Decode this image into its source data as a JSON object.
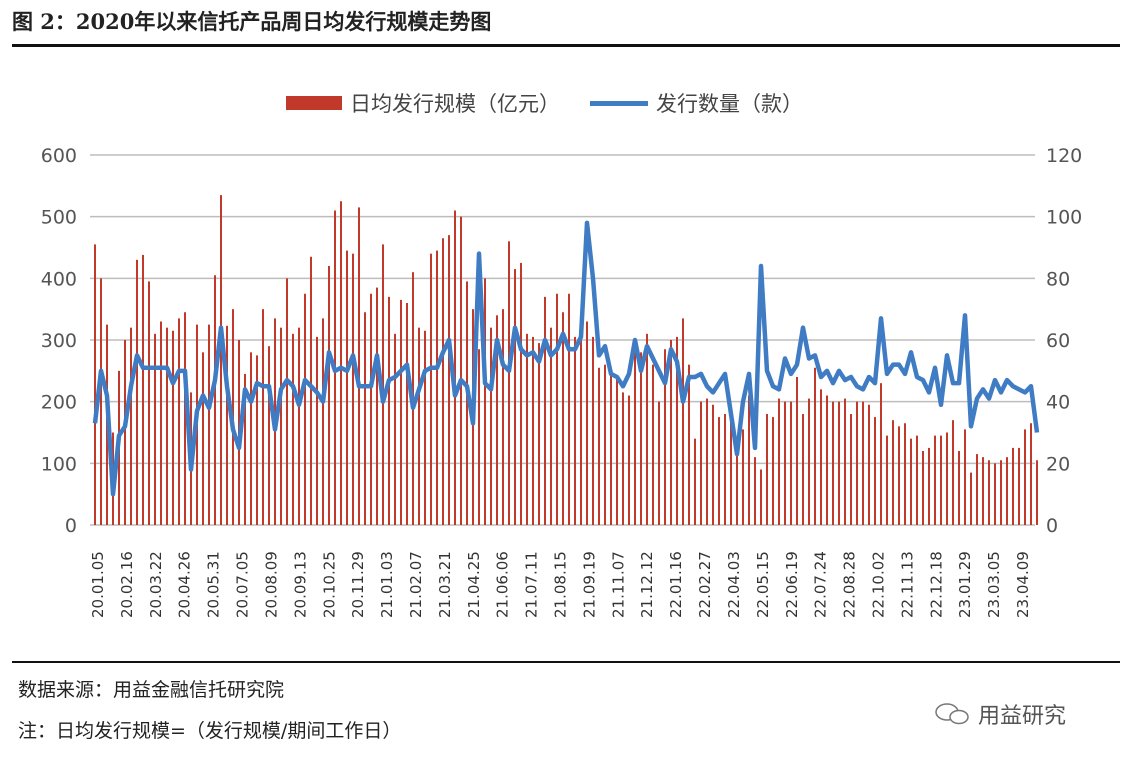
{
  "title": "图 2：2020年以来信托产品周日均发行规模走势图",
  "footer": {
    "source": "数据来源：用益金融信托研究院",
    "note": "注：日均发行规模=（发行规模/期间工作日）",
    "watermark": "用益研究",
    "watermark_icon": "wechat-icon"
  },
  "chart_data": {
    "type": "bar+line",
    "legend_position": "top",
    "grid": true,
    "colors": {
      "bars": "#c0392b",
      "line": "#3f7cc4"
    },
    "y_left": {
      "range": [
        0,
        600
      ],
      "ticks": [
        "0",
        "100",
        "200",
        "300",
        "400",
        "500",
        "600"
      ]
    },
    "y_right": {
      "range": [
        0,
        120
      ],
      "ticks": [
        "0",
        "20",
        "40",
        "60",
        "80",
        "100",
        "120"
      ]
    },
    "x_tick_labels": [
      "20.01.05",
      "20.02.16",
      "20.03.22",
      "20.04.26",
      "20.05.31",
      "20.07.05",
      "20.08.09",
      "20.09.13",
      "20.10.25",
      "20.11.29",
      "21.01.03",
      "21.02.07",
      "21.03.21",
      "21.04.25",
      "21.06.06",
      "21.07.11",
      "21.08.15",
      "21.09.19",
      "21.11.07",
      "21.12.12",
      "22.01.16",
      "22.02.27",
      "22.04.03",
      "22.05.15",
      "22.06.19",
      "22.07.24",
      "22.08.28",
      "22.10.02",
      "22.11.13",
      "22.12.18",
      "23.01.29",
      "23.03.05",
      "23.04.09"
    ],
    "series": [
      {
        "name": "日均发行规模（亿元）",
        "axis": "left",
        "type": "bar",
        "values": [
          455,
          400,
          325,
          150,
          250,
          300,
          320,
          430,
          438,
          395,
          310,
          330,
          320,
          315,
          335,
          345,
          215,
          325,
          280,
          325,
          405,
          535,
          323,
          350,
          300,
          245,
          280,
          275,
          350,
          290,
          335,
          320,
          400,
          310,
          320,
          375,
          435,
          305,
          335,
          420,
          510,
          525,
          445,
          440,
          515,
          345,
          375,
          385,
          455,
          370,
          310,
          365,
          360,
          410,
          320,
          315,
          440,
          445,
          465,
          470,
          510,
          500,
          395,
          350,
          285,
          400,
          320,
          340,
          350,
          460,
          415,
          425,
          310,
          305,
          295,
          370,
          320,
          375,
          345,
          375,
          305,
          315,
          330,
          305,
          255,
          260,
          250,
          240,
          215,
          210,
          285,
          280,
          310,
          260,
          200,
          285,
          300,
          305,
          335,
          260,
          140,
          200,
          205,
          195,
          175,
          180,
          185,
          140,
          155,
          210,
          110,
          90,
          180,
          175,
          205,
          200,
          200,
          240,
          180,
          205,
          255,
          220,
          210,
          200,
          200,
          205,
          180,
          200,
          200,
          195,
          175,
          230,
          145,
          170,
          160,
          165,
          140,
          145,
          120,
          125,
          145,
          145,
          150,
          170,
          120,
          155,
          85,
          115,
          110,
          105,
          100,
          105,
          110,
          125,
          125,
          155,
          165,
          105
        ]
      },
      {
        "name": "发行数量（款）",
        "axis": "right",
        "type": "line",
        "values": [
          33,
          50,
          42,
          10,
          29,
          32,
          45,
          55,
          51,
          51,
          51,
          51,
          51,
          46,
          50,
          50,
          18,
          37,
          42,
          38,
          47,
          64,
          45,
          31,
          25,
          44,
          40,
          46,
          45,
          45,
          31,
          44,
          47,
          45,
          39,
          47,
          45,
          43,
          40,
          56,
          50,
          51,
          50,
          55,
          45,
          45,
          45,
          55,
          40,
          47,
          48,
          50,
          52,
          38,
          44,
          50,
          51,
          51,
          56,
          60,
          42,
          47,
          45,
          33,
          88,
          46,
          44,
          60,
          52,
          50,
          64,
          57,
          55,
          56,
          53,
          60,
          55,
          57,
          62,
          57,
          57,
          61,
          98,
          80,
          55,
          58,
          49,
          48,
          45,
          49,
          60,
          50,
          58,
          54,
          50,
          46,
          57,
          53,
          40,
          48,
          48,
          49,
          45,
          43,
          46,
          49,
          36,
          23,
          40,
          49,
          25,
          84,
          50,
          45,
          44,
          54,
          49,
          52,
          64,
          54,
          55,
          48,
          50,
          46,
          50,
          47,
          48,
          45,
          44,
          48,
          46,
          67,
          49,
          52,
          52,
          49,
          56,
          48,
          47,
          43,
          51,
          39,
          55,
          46,
          46,
          68,
          32,
          41,
          44,
          41,
          47,
          43,
          47,
          45,
          44,
          43,
          45,
          30
        ]
      }
    ]
  }
}
